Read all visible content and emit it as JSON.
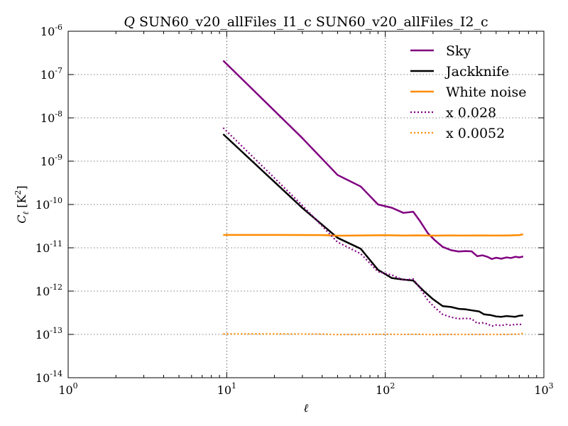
{
  "chart_data": {
    "type": "line",
    "title_var": "Q",
    "title_rest": " SUN60_v20_allFiles_I1_c SUN60_v20_allFiles_I2_c",
    "xlabel": "ℓ",
    "ylabel_main": "C",
    "ylabel_sub": "ℓ",
    "ylabel_unit": " [K",
    "ylabel_unit_exp": "2",
    "ylabel_unit_close": "]",
    "xscale": "log",
    "yscale": "log",
    "xlim": [
      1,
      1000
    ],
    "ylim": [
      1e-14,
      1e-06
    ],
    "grid": true,
    "legend_position": "top-right",
    "x_ticks": [
      {
        "base": "10",
        "exp": "0",
        "value": 1
      },
      {
        "base": "10",
        "exp": "1",
        "value": 10
      },
      {
        "base": "10",
        "exp": "2",
        "value": 100
      },
      {
        "base": "10",
        "exp": "3",
        "value": 1000
      }
    ],
    "y_ticks": [
      {
        "base": "10",
        "exp": "-14",
        "value": 1e-14
      },
      {
        "base": "10",
        "exp": "-13",
        "value": 1e-13
      },
      {
        "base": "10",
        "exp": "-12",
        "value": 1e-12
      },
      {
        "base": "10",
        "exp": "-11",
        "value": 1e-11
      },
      {
        "base": "10",
        "exp": "-10",
        "value": 1e-10
      },
      {
        "base": "10",
        "exp": "-9",
        "value": 1e-09
      },
      {
        "base": "10",
        "exp": "-8",
        "value": 1e-08
      },
      {
        "base": "10",
        "exp": "-7",
        "value": 1e-07
      },
      {
        "base": "10",
        "exp": "-6",
        "value": 1e-06
      }
    ],
    "series": [
      {
        "name": "Sky",
        "color": "#800080",
        "style": "solid",
        "points": [
          [
            9.5,
            2.1e-07
          ],
          [
            30,
            3.4e-09
          ],
          [
            50,
            4.8e-10
          ],
          [
            70,
            2.6e-10
          ],
          [
            90,
            1e-10
          ],
          [
            110,
            8.4e-11
          ],
          [
            130,
            6.4e-11
          ],
          [
            150,
            6.8e-11
          ],
          [
            165,
            4.2e-11
          ],
          [
            185,
            2.2e-11
          ],
          [
            205,
            1.5e-11
          ],
          [
            230,
            1.05e-11
          ],
          [
            260,
            8.8e-12
          ],
          [
            290,
            8.2e-12
          ],
          [
            320,
            8.4e-12
          ],
          [
            350,
            8.3e-12
          ],
          [
            380,
            6.4e-12
          ],
          [
            410,
            6.7e-12
          ],
          [
            440,
            6.2e-12
          ],
          [
            470,
            5.5e-12
          ],
          [
            500,
            5.9e-12
          ],
          [
            540,
            5.6e-12
          ],
          [
            580,
            6e-12
          ],
          [
            620,
            5.8e-12
          ],
          [
            660,
            6.2e-12
          ],
          [
            700,
            6e-12
          ],
          [
            740,
            6.3e-12
          ]
        ]
      },
      {
        "name": "Jackknife",
        "color": "#000000",
        "style": "solid",
        "points": [
          [
            9.5,
            4.2e-09
          ],
          [
            30,
            8.3e-11
          ],
          [
            50,
            1.7e-11
          ],
          [
            70,
            9.5e-12
          ],
          [
            90,
            3.1e-12
          ],
          [
            110,
            2e-12
          ],
          [
            130,
            1.85e-12
          ],
          [
            150,
            1.75e-12
          ],
          [
            175,
            1e-12
          ],
          [
            200,
            6.5e-13
          ],
          [
            230,
            4.5e-13
          ],
          [
            260,
            4.3e-13
          ],
          [
            290,
            3.9e-13
          ],
          [
            320,
            3.8e-13
          ],
          [
            350,
            3.6e-13
          ],
          [
            390,
            3.4e-13
          ],
          [
            420,
            2.9e-13
          ],
          [
            460,
            2.8e-13
          ],
          [
            500,
            2.6e-13
          ],
          [
            540,
            2.55e-13
          ],
          [
            580,
            2.65e-13
          ],
          [
            620,
            2.6e-13
          ],
          [
            660,
            2.55e-13
          ],
          [
            700,
            2.7e-13
          ],
          [
            740,
            2.75e-13
          ]
        ]
      },
      {
        "name": "White noise",
        "color": "#ff8c00",
        "style": "solid",
        "points": [
          [
            9.5,
            1.98e-11
          ],
          [
            20,
            1.98e-11
          ],
          [
            40,
            1.96e-11
          ],
          [
            50,
            1.9e-11
          ],
          [
            70,
            1.93e-11
          ],
          [
            100,
            1.95e-11
          ],
          [
            130,
            1.92e-11
          ],
          [
            160,
            1.94e-11
          ],
          [
            200,
            1.91e-11
          ],
          [
            250,
            1.93e-11
          ],
          [
            300,
            1.92e-11
          ],
          [
            400,
            1.93e-11
          ],
          [
            500,
            1.92e-11
          ],
          [
            600,
            1.93e-11
          ],
          [
            700,
            1.96e-11
          ],
          [
            740,
            2.05e-11
          ]
        ]
      },
      {
        "name": "x 0.028",
        "color": "#800080",
        "style": "dotted",
        "points": [
          [
            9.5,
            5.9e-09
          ],
          [
            30,
            9.5e-11
          ],
          [
            50,
            1.35e-11
          ],
          [
            70,
            7.3e-12
          ],
          [
            90,
            2.8e-12
          ],
          [
            110,
            2.35e-12
          ],
          [
            130,
            1.8e-12
          ],
          [
            150,
            1.9e-12
          ],
          [
            165,
            1.2e-12
          ],
          [
            185,
            6.2e-13
          ],
          [
            205,
            4.2e-13
          ],
          [
            230,
            2.9e-13
          ],
          [
            260,
            2.5e-13
          ],
          [
            290,
            2.3e-13
          ],
          [
            320,
            2.35e-13
          ],
          [
            350,
            2.3e-13
          ],
          [
            380,
            1.8e-13
          ],
          [
            410,
            1.85e-13
          ],
          [
            440,
            1.75e-13
          ],
          [
            470,
            1.55e-13
          ],
          [
            500,
            1.65e-13
          ],
          [
            540,
            1.6e-13
          ],
          [
            580,
            1.7e-13
          ],
          [
            620,
            1.62e-13
          ],
          [
            660,
            1.72e-13
          ],
          [
            700,
            1.68e-13
          ],
          [
            740,
            1.75e-13
          ]
        ]
      },
      {
        "name": "x 0.0052",
        "color": "#ff8c00",
        "style": "dotted",
        "points": [
          [
            9.5,
            1.03e-13
          ],
          [
            20,
            1.03e-13
          ],
          [
            40,
            1.02e-13
          ],
          [
            50,
            9.9e-14
          ],
          [
            70,
            1e-13
          ],
          [
            100,
            1.01e-13
          ],
          [
            130,
            1e-13
          ],
          [
            160,
            1.01e-13
          ],
          [
            200,
            9.9e-14
          ],
          [
            250,
            1e-13
          ],
          [
            300,
            1e-13
          ],
          [
            400,
            1e-13
          ],
          [
            500,
            1e-13
          ],
          [
            600,
            1e-13
          ],
          [
            700,
            1.02e-13
          ],
          [
            740,
            1.06e-13
          ]
        ]
      }
    ]
  }
}
